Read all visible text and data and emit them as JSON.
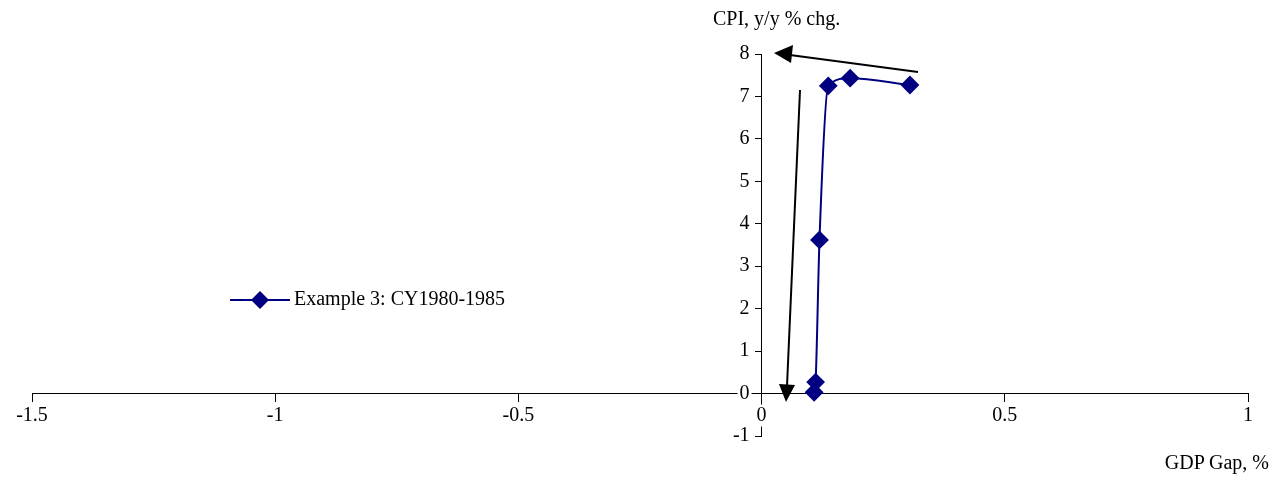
{
  "chart_data": {
    "type": "line",
    "xlabel": "GDP Gap, %",
    "ylabel": "CPI, y/y % chg.",
    "x": [
      0.108,
      0.111,
      0.119,
      0.137,
      0.182,
      0.305
    ],
    "series": [
      {
        "name": "Example 3: CY1980-1985",
        "color": "#000080",
        "values": [
          0.03,
          0.27,
          3.62,
          7.25,
          7.43,
          7.27
        ]
      }
    ],
    "xlim": [
      -1.5,
      1
    ],
    "xticks": [
      -1.5,
      -1,
      -0.5,
      0,
      0.5,
      1
    ],
    "ylim": [
      -1,
      8
    ],
    "yticks": [
      -1,
      0,
      1,
      2,
      3,
      4,
      5,
      6,
      7,
      8
    ],
    "legend": "left",
    "marker": "diamond",
    "line_style": "solid"
  }
}
